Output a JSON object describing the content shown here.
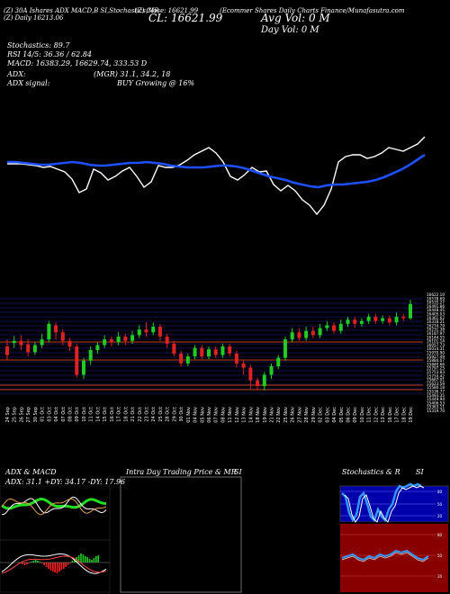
{
  "header": {
    "symbol_line": "(Z) 30A Ishares ADX MACD,B SI,Stochastics,MR",
    "daily_line": "(Z) Daily 16213.06",
    "mid_label": "(Z) Close: 16621.99",
    "close_big": "CL: 16621.99",
    "source": "(Ecommer Shares Daily Charts Finance/Munafasutra.com",
    "vol_big": "Avg Vol: 0  M",
    "day_vol": "Day Vol: 0  M"
  },
  "indicators": {
    "stoch": "Stochastics: 89.7",
    "rsi": "RSI 14/5: 36.36  / 62.84",
    "macd": "MACD: 16383.29,  16629.74,  333.53 D",
    "adx": "ADX:",
    "adx_vals": "(MGR) 31.1,  34.2,  18",
    "adx_signal": "ADX  signal:",
    "buy_signal": "BUY Growing @ 16%"
  },
  "colors": {
    "price": "#ffffff",
    "ma": "#1e50ff",
    "up": "#22cc22",
    "down": "#dd2222",
    "zero": "#ff5500",
    "guide": "#2222aa"
  },
  "chart_data": {
    "type": "candlestick",
    "dates": [
      "24 Sep",
      "25 Sep",
      "26 Sep",
      "27 Sep",
      "30 Sep",
      "01 Oct",
      "03 Oct",
      "04 Oct",
      "07 Oct",
      "08 Oct",
      "09 Oct",
      "10 Oct",
      "11 Oct",
      "14 Oct",
      "15 Oct",
      "16 Oct",
      "17 Oct",
      "18 Oct",
      "21 Oct",
      "22 Oct",
      "23 Oct",
      "24 Oct",
      "25 Oct",
      "28 Oct",
      "29 Oct",
      "30 Oct",
      "01 Nov",
      "04 Nov",
      "05 Nov",
      "06 Nov",
      "07 Nov",
      "08 Nov",
      "11 Nov",
      "12 Nov",
      "13 Nov",
      "14 Nov",
      "18 Nov",
      "19 Nov",
      "21 Nov",
      "22 Nov",
      "25 Nov",
      "26 Nov",
      "27 Nov",
      "28 Nov",
      "29 Nov",
      "02 Dec",
      "03 Dec",
      "04 Dec",
      "05 Dec",
      "06 Dec",
      "09 Dec",
      "10 Dec",
      "11 Dec",
      "12 Dec",
      "13 Dec",
      "16 Dec",
      "17 Dec",
      "18 Dec",
      "19 Dec"
    ],
    "axis_labels": [
      "16622.10",
      "16578.69",
      "16535.27",
      "16491.86",
      "16448.45",
      "16405.03",
      "16361.62",
      "16318.21",
      "16274.79",
      "16231.38",
      "16187.97",
      "16144.55",
      "16101.14",
      "16057.73",
      "16014.31",
      "15970.90",
      "15927.49",
      "15884.07",
      "15840.66",
      "15797.25",
      "15753.83",
      "15710.42",
      "15667.01",
      "15623.59",
      "15580.18",
      "15536.77",
      "15493.35",
      "15449.94",
      "15406.53",
      "15363.11",
      "15319.70"
    ],
    "candles": [
      [
        0.0,
        -0.12,
        0.1,
        -0.2
      ],
      [
        0.05,
        0.08,
        0.15,
        -0.02
      ],
      [
        0.08,
        0.02,
        0.16,
        -0.05
      ],
      [
        0.03,
        -0.08,
        0.1,
        -0.14
      ],
      [
        -0.08,
        0.02,
        0.06,
        -0.12
      ],
      [
        0.02,
        0.1,
        0.18,
        -0.02
      ],
      [
        0.1,
        0.32,
        0.36,
        0.06
      ],
      [
        0.3,
        0.2,
        0.34,
        0.1
      ],
      [
        0.2,
        0.08,
        0.24,
        0.02
      ],
      [
        0.08,
        0.0,
        0.12,
        -0.06
      ],
      [
        0.0,
        -0.4,
        0.04,
        -0.44
      ],
      [
        -0.4,
        -0.2,
        -0.16,
        -0.46
      ],
      [
        -0.2,
        -0.05,
        0.0,
        -0.26
      ],
      [
        -0.05,
        0.02,
        0.06,
        -0.1
      ],
      [
        0.02,
        0.1,
        0.16,
        -0.02
      ],
      [
        0.1,
        0.06,
        0.14,
        0.0
      ],
      [
        0.06,
        0.14,
        0.2,
        0.02
      ],
      [
        0.14,
        0.08,
        0.18,
        0.02
      ],
      [
        0.08,
        0.16,
        0.22,
        0.04
      ],
      [
        0.16,
        0.24,
        0.3,
        0.12
      ],
      [
        0.24,
        0.2,
        0.34,
        0.14
      ],
      [
        0.2,
        0.28,
        0.34,
        0.16
      ],
      [
        0.28,
        0.14,
        0.32,
        0.08
      ],
      [
        0.14,
        0.04,
        0.18,
        -0.02
      ],
      [
        0.04,
        -0.1,
        0.08,
        -0.14
      ],
      [
        -0.1,
        -0.24,
        -0.06,
        -0.28
      ],
      [
        -0.24,
        -0.14,
        -0.1,
        -0.28
      ],
      [
        -0.14,
        -0.02,
        0.02,
        -0.18
      ],
      [
        -0.02,
        -0.14,
        0.02,
        -0.18
      ],
      [
        -0.14,
        -0.04,
        0.0,
        -0.18
      ],
      [
        -0.04,
        -0.12,
        0.0,
        -0.16
      ],
      [
        -0.12,
        0.0,
        0.04,
        -0.16
      ],
      [
        0.0,
        -0.1,
        0.04,
        -0.14
      ],
      [
        -0.1,
        -0.24,
        -0.06,
        -0.3
      ],
      [
        -0.24,
        -0.3,
        -0.2,
        -0.4
      ],
      [
        -0.3,
        -0.48,
        -0.26,
        -0.6
      ],
      [
        -0.48,
        -0.56,
        -0.44,
        -0.62
      ],
      [
        -0.56,
        -0.4,
        -0.36,
        -0.62
      ],
      [
        -0.4,
        -0.28,
        -0.24,
        -0.46
      ],
      [
        -0.28,
        -0.16,
        -0.12,
        -0.32
      ],
      [
        -0.16,
        0.1,
        0.14,
        -0.2
      ],
      [
        0.1,
        0.2,
        0.26,
        0.06
      ],
      [
        0.2,
        0.12,
        0.26,
        0.08
      ],
      [
        0.12,
        0.22,
        0.28,
        0.08
      ],
      [
        0.22,
        0.16,
        0.28,
        0.12
      ],
      [
        0.16,
        0.26,
        0.32,
        0.12
      ],
      [
        0.26,
        0.3,
        0.36,
        0.22
      ],
      [
        0.3,
        0.22,
        0.34,
        0.18
      ],
      [
        0.22,
        0.32,
        0.38,
        0.18
      ],
      [
        0.32,
        0.38,
        0.42,
        0.28
      ],
      [
        0.38,
        0.32,
        0.42,
        0.26
      ],
      [
        0.32,
        0.36,
        0.4,
        0.28
      ],
      [
        0.36,
        0.42,
        0.46,
        0.32
      ],
      [
        0.42,
        0.36,
        0.46,
        0.32
      ],
      [
        0.36,
        0.4,
        0.44,
        0.32
      ],
      [
        0.4,
        0.34,
        0.44,
        0.3
      ],
      [
        0.34,
        0.42,
        0.48,
        0.3
      ],
      [
        0.42,
        0.4,
        0.46,
        0.36
      ],
      [
        0.4,
        0.6,
        0.66,
        0.38
      ]
    ]
  },
  "panels": {
    "adx_title": "ADX  & MACD",
    "adx_readout": "ADX: 31.1  +DY: 34.17  -DY: 17.96",
    "mr_title": "Intra  Day Trading Price  & MR",
    "mr_si": "SI",
    "stoch_title": "Stochastics & R",
    "stoch_si": "SI",
    "stoch_levels": [
      "80",
      "50",
      "20"
    ],
    "rsi_levels": [
      "80",
      "50",
      "20"
    ]
  }
}
